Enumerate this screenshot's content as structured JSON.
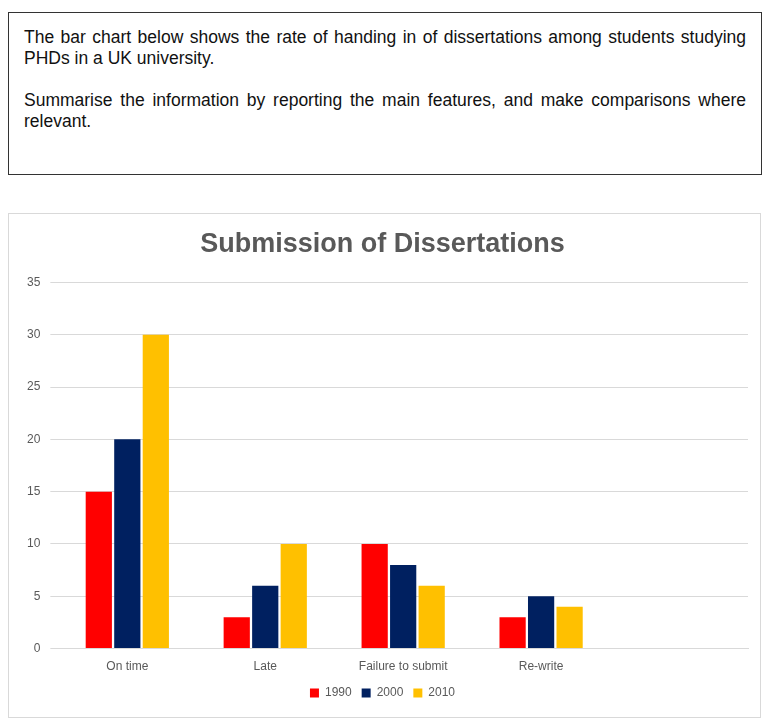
{
  "prompt": {
    "paragraphs": [
      "The bar chart below shows the rate of handing in of dissertations among students studying PHDs in a UK university.",
      "Summarise the information by reporting the main features, and make comparisons where relevant."
    ]
  },
  "chart_data": {
    "type": "bar",
    "title": "Submission of Dissertations",
    "categories": [
      "On time",
      "Late",
      "Failure to submit",
      "Re-write",
      null
    ],
    "series": [
      {
        "name": "1990",
        "color": "#ff0000",
        "values": [
          15,
          3,
          10,
          3,
          null
        ]
      },
      {
        "name": "2000",
        "color": "#002060",
        "values": [
          20,
          6,
          8,
          5,
          null
        ]
      },
      {
        "name": "2010",
        "color": "#ffc000",
        "values": [
          30,
          10,
          6,
          4,
          null
        ]
      }
    ],
    "ylim": [
      0,
      35
    ],
    "yticks": [
      0,
      5,
      10,
      15,
      20,
      25,
      30,
      35
    ],
    "grid": true,
    "legend": "bottom"
  }
}
